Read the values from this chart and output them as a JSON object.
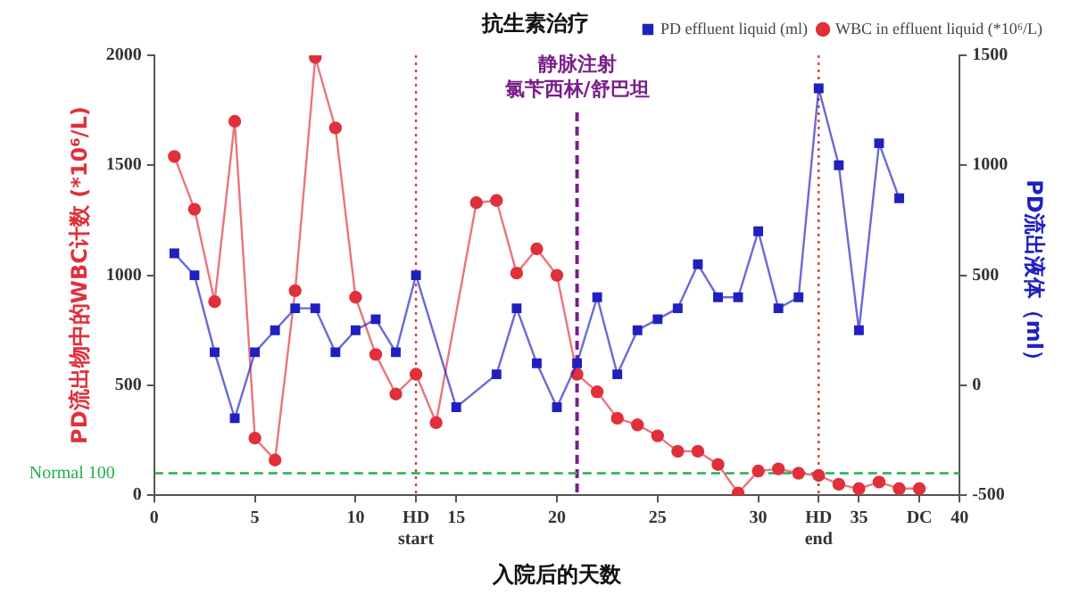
{
  "chart_data": {
    "type": "line",
    "title": "抗生素治疗",
    "xlabel": "入院后的天数",
    "ylabel": "PD流出物中的WBC计数 (*10⁶/L)",
    "y2label": "PD流出液体（ml）",
    "xlim": [
      0,
      40
    ],
    "xticks": [
      0,
      5,
      10,
      {
        "value": 13,
        "label": "HD start"
      },
      15,
      20,
      25,
      30,
      {
        "value": 33,
        "label": "HD end"
      },
      35,
      {
        "value": 38,
        "label": "DC"
      },
      40
    ],
    "ylim": [
      0,
      2000
    ],
    "yticks": [
      0,
      500,
      1000,
      1500,
      2000
    ],
    "y2lim": [
      -500,
      1500
    ],
    "y2ticks": [
      -500,
      0,
      500,
      1000,
      1500
    ],
    "grid": false,
    "legend": "top right",
    "series": [
      {
        "name": "PD effluent liquid (ml)",
        "color": "#2020c0",
        "axis": "y2",
        "marker": "square",
        "x": [
          1,
          2,
          3,
          4,
          5,
          6,
          7,
          8,
          9,
          10,
          11,
          12,
          13,
          15,
          17,
          18,
          19,
          20,
          21,
          22,
          23,
          24,
          25,
          26,
          27,
          28,
          29,
          30,
          31,
          32,
          33,
          34,
          35,
          36,
          37
        ],
        "values": [
          600,
          500,
          150,
          -150,
          150,
          250,
          350,
          350,
          150,
          250,
          300,
          150,
          500,
          -100,
          50,
          350,
          100,
          -100,
          100,
          400,
          50,
          250,
          300,
          350,
          550,
          400,
          400,
          700,
          350,
          400,
          1350,
          1000,
          250,
          1100,
          850
        ]
      },
      {
        "name": "WBC in effluent liquid (*10⁶/L)",
        "color": "#e0303a",
        "marker": "circle",
        "x": [
          1,
          2,
          3,
          4,
          5,
          6,
          7,
          8,
          9,
          10,
          11,
          12,
          13,
          14,
          16,
          17,
          18,
          19,
          20,
          21,
          22,
          23,
          24,
          25,
          26,
          27,
          28,
          29,
          30,
          31,
          32,
          33,
          34,
          35,
          36,
          37,
          38
        ],
        "values": [
          1540,
          1300,
          880,
          1700,
          260,
          160,
          930,
          1990,
          1670,
          900,
          640,
          460,
          550,
          330,
          1330,
          1340,
          1010,
          1120,
          1000,
          550,
          470,
          350,
          320,
          270,
          200,
          200,
          140,
          10,
          110,
          120,
          100,
          90,
          50,
          30,
          60,
          30,
          30
        ]
      }
    ],
    "ref_lines": [
      {
        "axis": "x",
        "value": 13,
        "color": "#d04040",
        "line_style": "dotted"
      },
      {
        "axis": "x",
        "value": 21,
        "label": "静脉注射氯苄西林/舒巴坦",
        "color": "#7a1f8a",
        "line_style": "dashed"
      },
      {
        "axis": "x",
        "value": 33,
        "color": "#d04040",
        "line_style": "dotted"
      },
      {
        "axis": "y",
        "value": 100,
        "label": "Normal 100",
        "color": "#20b050",
        "line_style": "dashed"
      }
    ]
  }
}
